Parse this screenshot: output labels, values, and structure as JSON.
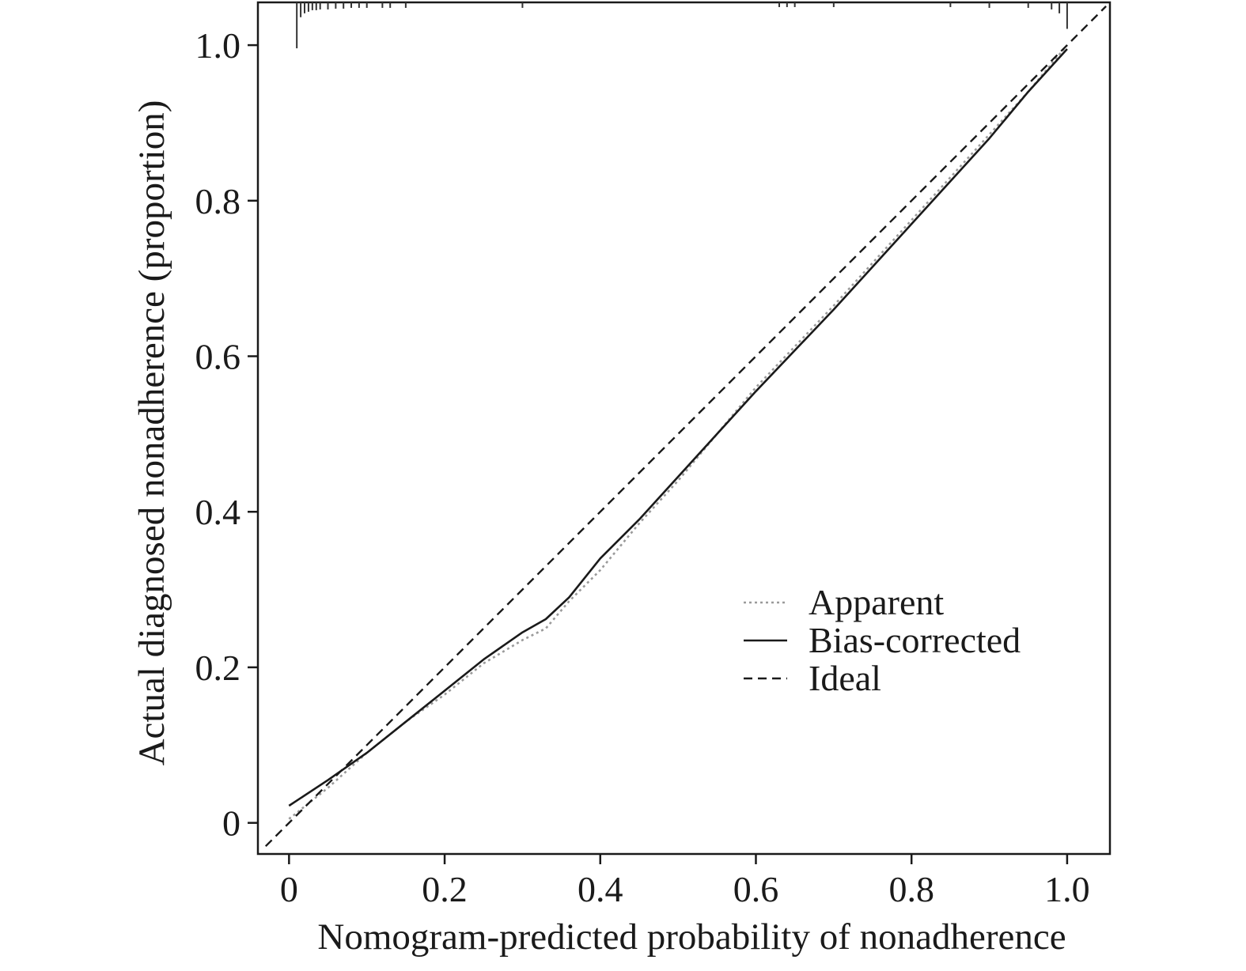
{
  "chart_data": {
    "type": "line",
    "title": "",
    "xlabel": "Nomogram-predicted probability of nonadherence",
    "ylabel": "Actual diagnosed nonadherence (proportion)",
    "xlim": [
      -0.04,
      1.055
    ],
    "ylim": [
      -0.04,
      1.055
    ],
    "x_ticks": [
      0,
      0.2,
      0.4,
      0.6,
      0.8,
      1.0
    ],
    "x_tick_labels": [
      "0",
      "0.2",
      "0.4",
      "0.6",
      "0.8",
      "1.0"
    ],
    "y_ticks": [
      0,
      0.2,
      0.4,
      0.6,
      0.8,
      1.0
    ],
    "y_tick_labels": [
      "0",
      "0.2",
      "0.4",
      "0.6",
      "0.8",
      "1.0"
    ],
    "grid": false,
    "legend_position": "lower-right",
    "series": [
      {
        "name": "Apparent",
        "style": "dotted",
        "color": "#9a9a9a",
        "x": [
          0.0,
          0.05,
          0.1,
          0.15,
          0.2,
          0.25,
          0.3,
          0.33,
          0.36,
          0.4,
          0.45,
          0.5,
          0.55,
          0.6,
          0.7,
          0.8,
          0.9,
          0.95,
          1.0
        ],
        "y": [
          0.005,
          0.045,
          0.09,
          0.13,
          0.165,
          0.205,
          0.235,
          0.25,
          0.285,
          0.325,
          0.385,
          0.44,
          0.5,
          0.56,
          0.665,
          0.775,
          0.885,
          0.94,
          1.0
        ]
      },
      {
        "name": "Bias-corrected",
        "style": "solid",
        "color": "#1a1a1a",
        "x": [
          0.0,
          0.05,
          0.1,
          0.15,
          0.2,
          0.25,
          0.3,
          0.33,
          0.36,
          0.4,
          0.45,
          0.5,
          0.55,
          0.6,
          0.7,
          0.8,
          0.9,
          0.95,
          1.0
        ],
        "y": [
          0.022,
          0.055,
          0.09,
          0.13,
          0.17,
          0.21,
          0.245,
          0.262,
          0.29,
          0.34,
          0.39,
          0.445,
          0.5,
          0.555,
          0.66,
          0.77,
          0.88,
          0.94,
          0.995
        ]
      },
      {
        "name": "Ideal",
        "style": "dashed",
        "color": "#1a1a1a",
        "x": [
          -0.03,
          1.05
        ],
        "y": [
          -0.03,
          1.05
        ]
      }
    ],
    "rug": {
      "x": [
        0.01,
        0.015,
        0.02,
        0.025,
        0.03,
        0.035,
        0.04,
        0.05,
        0.06,
        0.07,
        0.08,
        0.09,
        0.1,
        0.12,
        0.13,
        0.15,
        0.3,
        0.63,
        0.64,
        0.65,
        0.7,
        0.85,
        0.9,
        0.95,
        0.98,
        0.99,
        1.0
      ],
      "heights": [
        0.055,
        0.015,
        0.01,
        0.008,
        0.006,
        0.006,
        0.005,
        0.005,
        0.004,
        0.004,
        0.003,
        0.003,
        0.003,
        0.003,
        0.003,
        0.003,
        0.003,
        0.002,
        0.002,
        0.002,
        0.002,
        0.002,
        0.003,
        0.003,
        0.005,
        0.01,
        0.03
      ]
    }
  }
}
